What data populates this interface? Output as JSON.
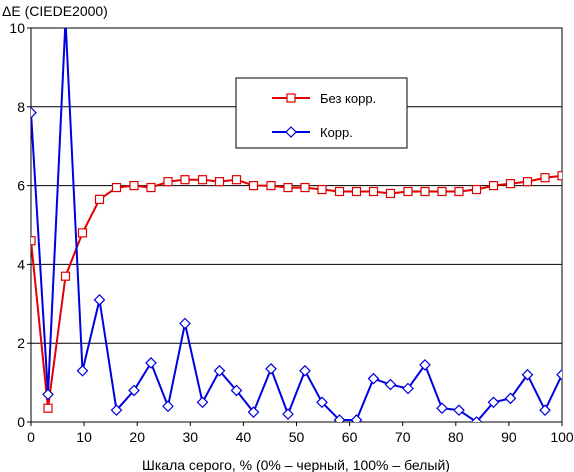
{
  "chart_data": {
    "type": "line",
    "title": "",
    "ylabel": "ΔE (CIEDE2000)",
    "xlabel": "Шкала серого, % (0% – черный, 100% – белый)",
    "xlim": [
      0,
      100
    ],
    "ylim": [
      0,
      10
    ],
    "xticks": [
      "0",
      "10",
      "20",
      "30",
      "40",
      "50",
      "60",
      "70",
      "80",
      "90",
      "100"
    ],
    "yticks": [
      "0",
      "2",
      "4",
      "6",
      "8",
      "10"
    ],
    "grid": "horizontal",
    "legend_position": "top-right-inside",
    "x": [
      0,
      3.2,
      6.5,
      9.7,
      12.9,
      16.1,
      19.4,
      22.6,
      25.8,
      29.0,
      32.3,
      35.5,
      38.7,
      41.9,
      45.2,
      48.4,
      51.6,
      54.8,
      58.1,
      61.3,
      64.5,
      67.7,
      71.0,
      74.2,
      77.4,
      80.6,
      83.9,
      87.1,
      90.3,
      93.5,
      96.8,
      100
    ],
    "series": [
      {
        "name": "Без корр.",
        "color": "#e00000",
        "marker": "square",
        "values": [
          4.6,
          0.35,
          3.7,
          4.8,
          5.65,
          5.95,
          6.0,
          5.95,
          6.1,
          6.15,
          6.15,
          6.1,
          6.15,
          6.0,
          6.0,
          5.95,
          5.95,
          5.9,
          5.85,
          5.85,
          5.85,
          5.8,
          5.85,
          5.85,
          5.85,
          5.85,
          5.9,
          6.0,
          6.05,
          6.1,
          6.2,
          6.25
        ]
      },
      {
        "name": "Корр.",
        "color": "#0000e0",
        "marker": "diamond",
        "values": [
          7.85,
          0.7,
          10.2,
          1.3,
          3.1,
          0.3,
          0.8,
          1.5,
          0.4,
          2.5,
          0.5,
          1.3,
          0.8,
          0.25,
          1.35,
          0.2,
          1.3,
          0.5,
          0.05,
          0.05,
          1.1,
          0.95,
          0.85,
          1.45,
          0.35,
          0.3,
          0.0,
          0.5,
          0.6,
          1.2,
          0.3,
          1.2
        ]
      }
    ]
  }
}
